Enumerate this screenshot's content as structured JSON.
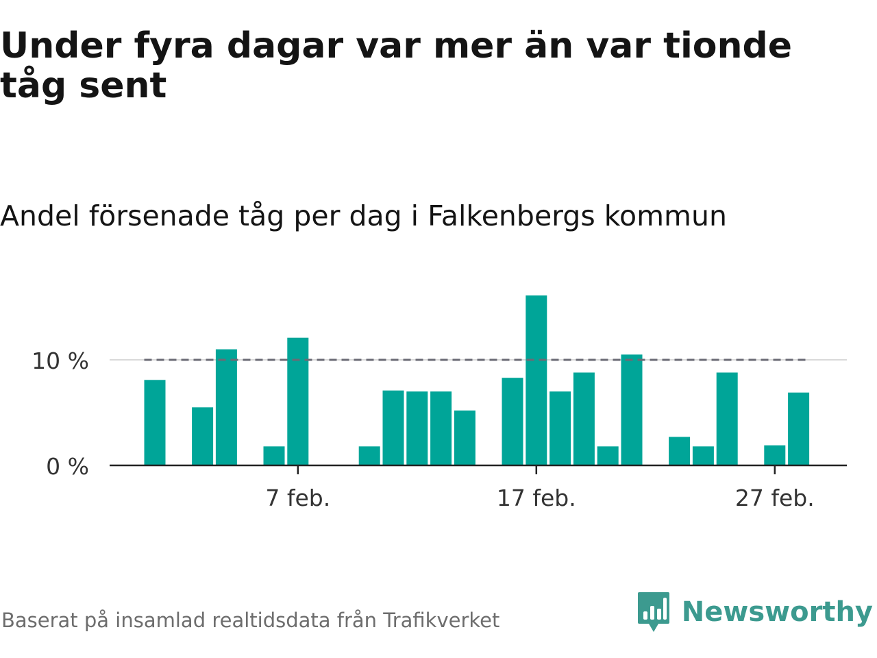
{
  "title": "Under fyra dagar var mer än var tionde tåg sent",
  "subtitle": "Andel försenade tåg per dag i Falkenbergs kommun",
  "footer": {
    "source": "Baserat på insamlad realtidsdata från Trafikverket",
    "brand": "Newsworthy"
  },
  "colors": {
    "bar": "#00a598",
    "reference_line": "#6b6b75",
    "axis": "#222222",
    "gridline": "#d9d9d9",
    "brand": "#3c9a8f"
  },
  "chart_data": {
    "type": "bar",
    "title": "Andel försenade tåg per dag i Falkenbergs kommun",
    "xlabel": "",
    "ylabel": "",
    "ylim": [
      0,
      17
    ],
    "y_unit": "%",
    "y_ticks": [
      {
        "value": 0,
        "label": "0 %"
      },
      {
        "value": 10,
        "label": "10 %"
      }
    ],
    "x_ticks": [
      {
        "date": "2021-02-07",
        "label": "7 feb."
      },
      {
        "date": "2021-02-17",
        "label": "17 feb."
      },
      {
        "date": "2021-02-27",
        "label": "27 feb."
      }
    ],
    "reference_line": {
      "value": 10,
      "style": "dashed"
    },
    "grid": "horizontal at 10 %",
    "x": [
      "2021-02-01",
      "2021-02-02",
      "2021-02-03",
      "2021-02-04",
      "2021-02-05",
      "2021-02-06",
      "2021-02-07",
      "2021-02-08",
      "2021-02-09",
      "2021-02-10",
      "2021-02-11",
      "2021-02-12",
      "2021-02-13",
      "2021-02-14",
      "2021-02-15",
      "2021-02-16",
      "2021-02-17",
      "2021-02-18",
      "2021-02-19",
      "2021-02-20",
      "2021-02-21",
      "2021-02-22",
      "2021-02-23",
      "2021-02-24",
      "2021-02-25",
      "2021-02-26",
      "2021-02-27",
      "2021-02-28"
    ],
    "values": [
      8.1,
      null,
      5.5,
      11.0,
      null,
      1.8,
      12.1,
      null,
      null,
      1.8,
      7.1,
      7.0,
      7.0,
      5.2,
      null,
      8.3,
      16.1,
      7.0,
      8.8,
      1.8,
      10.5,
      null,
      2.7,
      1.8,
      8.8,
      null,
      1.9,
      6.9
    ]
  }
}
